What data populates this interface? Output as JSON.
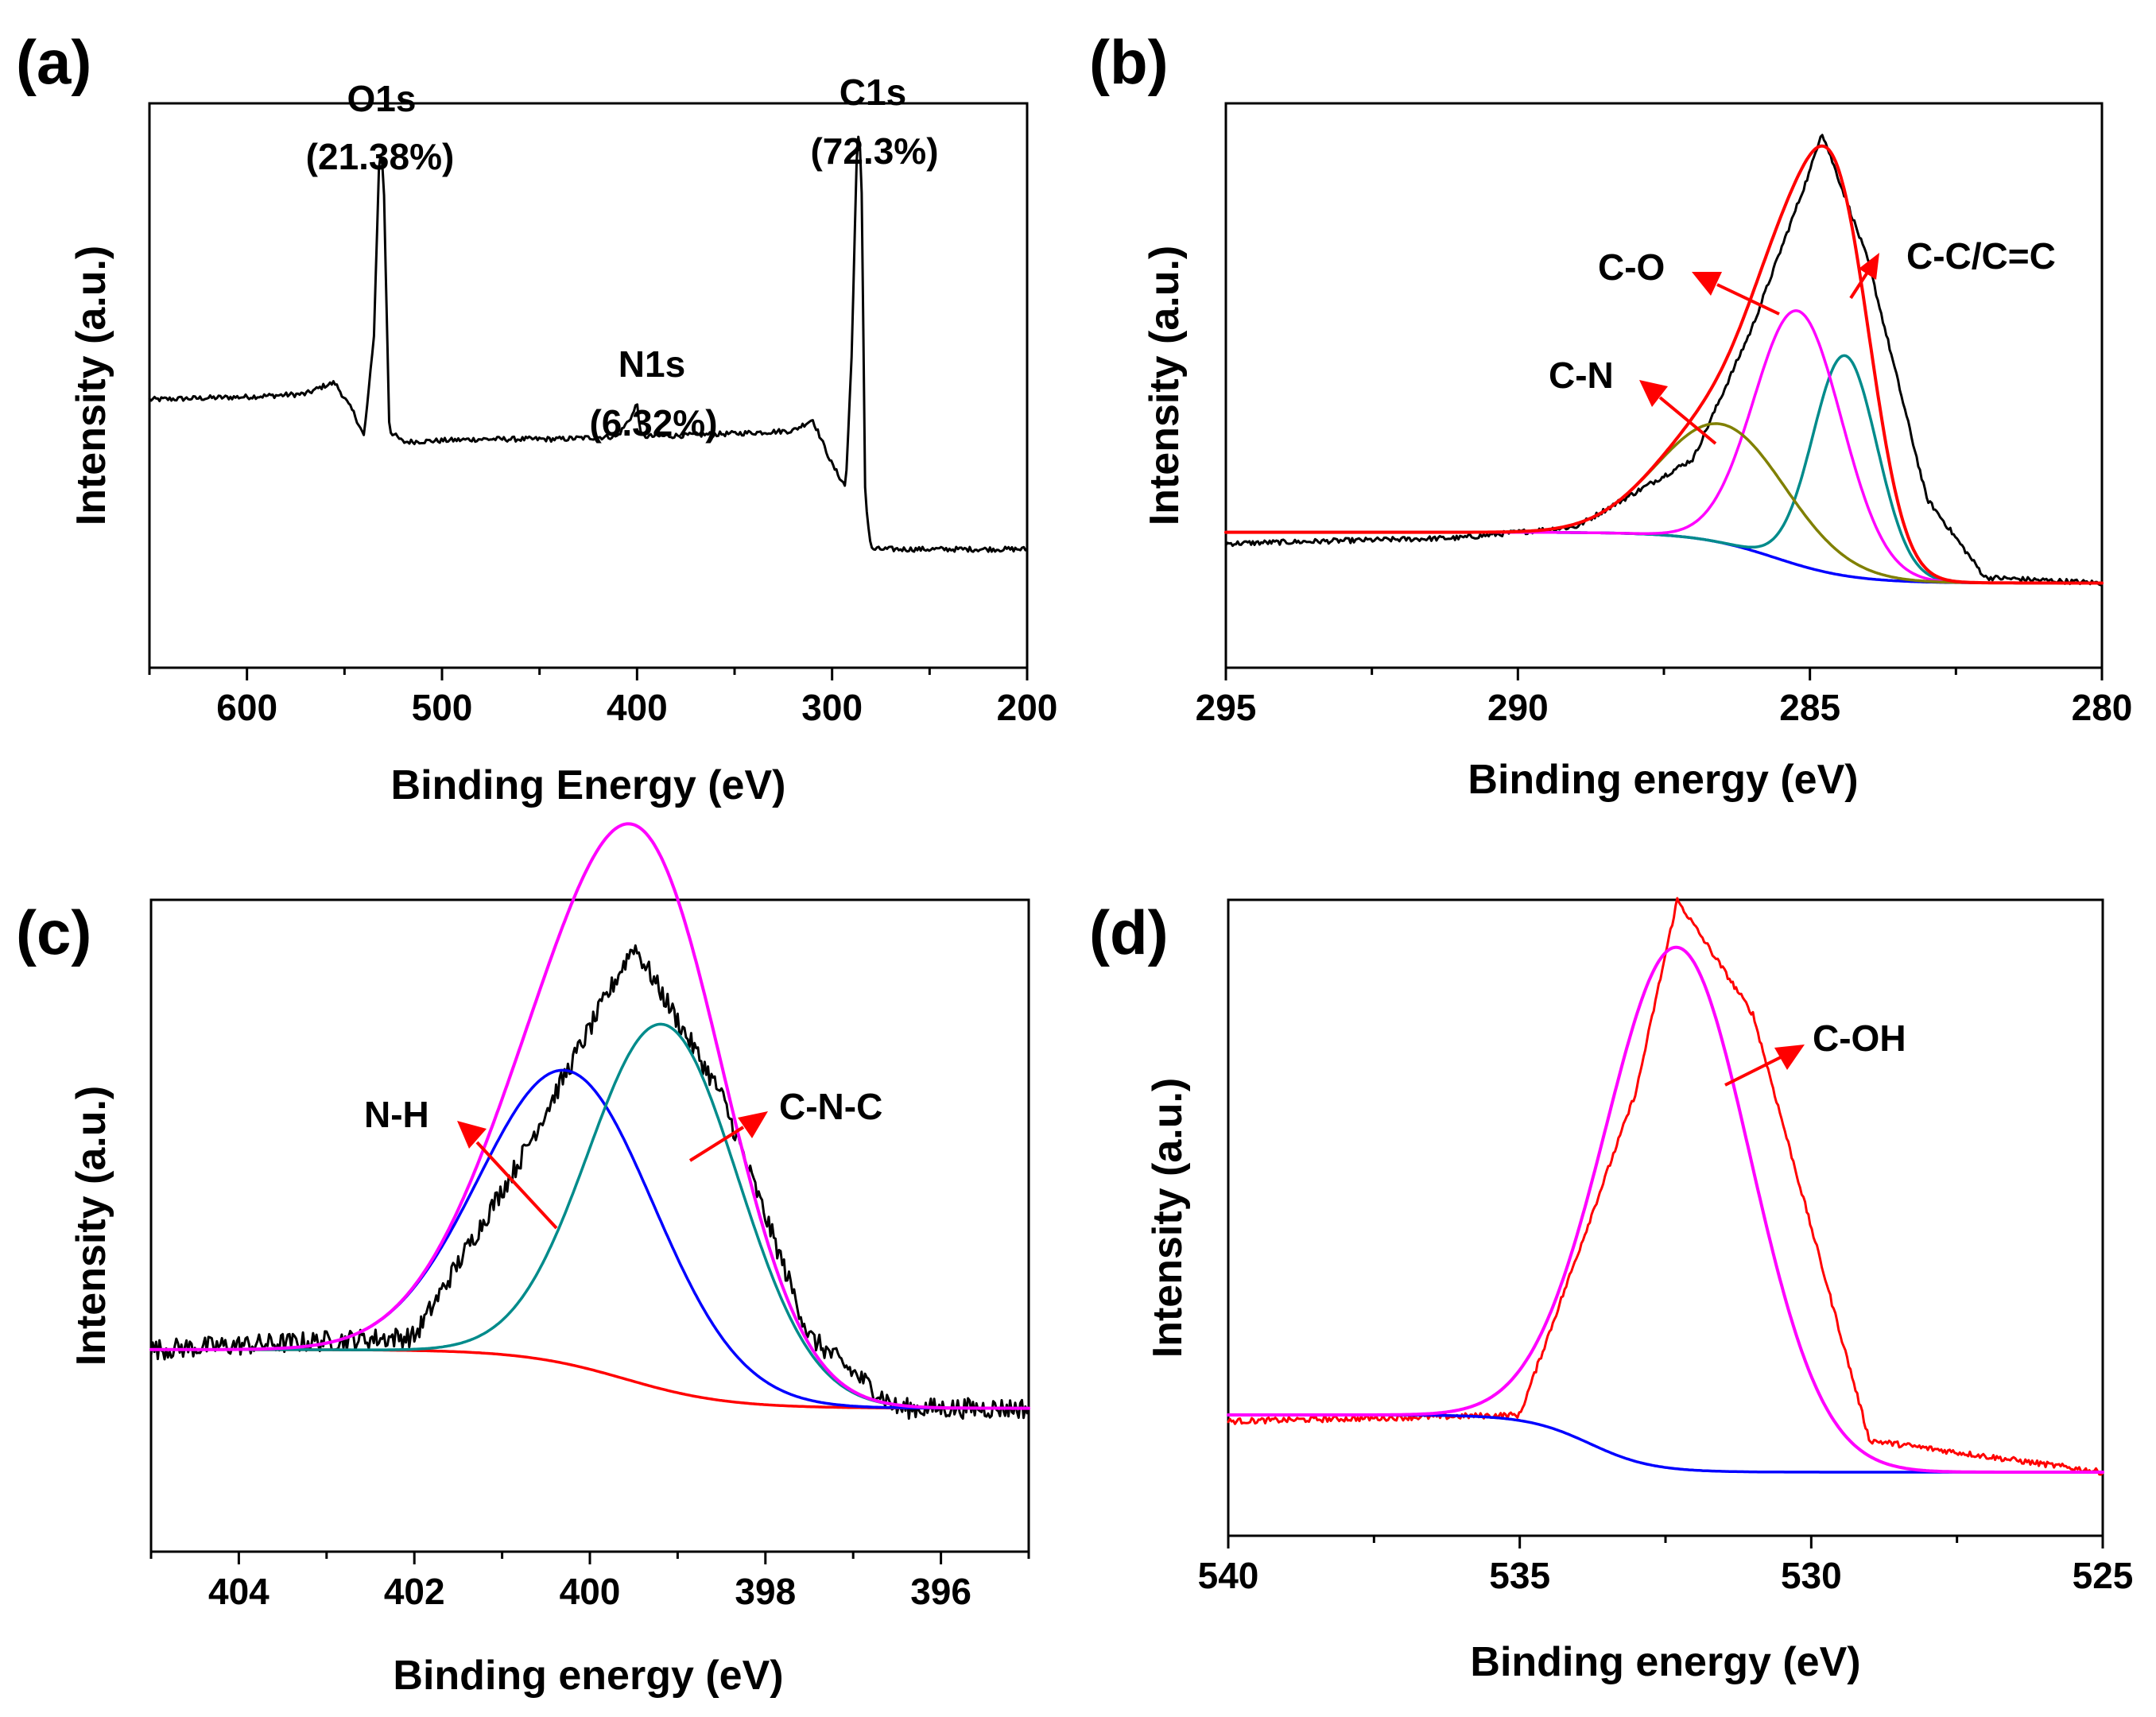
{
  "chart_data": [
    {
      "panel": "(a)",
      "type": "line",
      "xlabel": "Binding Energy (eV)",
      "ylabel": "Intensity (a.u.)",
      "xlim": [
        650,
        200
      ],
      "xticks": [
        600,
        500,
        400,
        300,
        200
      ],
      "ylim": [
        0,
        100
      ],
      "series": [
        {
          "name": "survey",
          "color": "#000000",
          "x": [
            650,
            600,
            570,
            560,
            555,
            545,
            540,
            535,
            532,
            530,
            527,
            520,
            480,
            440,
            410,
            402,
            400,
            398,
            390,
            350,
            320,
            310,
            300,
            293,
            290,
            287,
            285,
            283,
            280,
            260,
            200
          ],
          "y": [
            47.5,
            48,
            48.5,
            50,
            50.5,
            45,
            41,
            58,
            92,
            88,
            42,
            40,
            40.5,
            40.5,
            41,
            45,
            47,
            41,
            41,
            41.5,
            42,
            44,
            36,
            32,
            55,
            95,
            90,
            30,
            21,
            21,
            21
          ]
        }
      ],
      "annotations": [
        {
          "label": "O1s",
          "value": "(21.38%)"
        },
        {
          "label": "N1s",
          "value": "(6.32%)"
        },
        {
          "label": "C1s",
          "value": "(72.3%)"
        }
      ]
    },
    {
      "panel": "(b)",
      "type": "line",
      "xlabel": "Binding energy (eV)",
      "ylabel": "Intensity (a.u.)",
      "xlim": [
        295,
        280
      ],
      "xticks": [
        295,
        290,
        285,
        280
      ],
      "ylim": [
        0,
        100
      ],
      "peaks": [
        {
          "name": "C-C/C=C",
          "center": 284.4,
          "height": 39,
          "sigma": 0.55,
          "color": "#008b8b"
        },
        {
          "name": "C-O",
          "center": 285.2,
          "height": 45,
          "sigma": 0.75,
          "color": "#ff00ff"
        },
        {
          "name": "C-N",
          "center": 286.5,
          "height": 21,
          "sigma": 1.1,
          "color": "#808000"
        }
      ],
      "background": {
        "low": 15,
        "high": 24,
        "center": 285.6,
        "width": 1.5,
        "color": "#0000ff"
      },
      "envelope_color": "#ff0000",
      "raw_color": "#000000",
      "series": [
        {
          "name": "raw",
          "color": "#000000",
          "x": [
            295,
            291,
            289,
            287,
            286,
            285,
            284.8,
            284,
            283,
            282,
            280
          ],
          "y": [
            22,
            23,
            25,
            37,
            60,
            88,
            95,
            72,
            30,
            16,
            15
          ]
        }
      ],
      "annotations": [
        "C-C/C=C",
        "C-O",
        "C-N"
      ]
    },
    {
      "panel": "(c)",
      "type": "line",
      "xlabel": "Binding energy (eV)",
      "ylabel": "Intensity (a.u.)",
      "xlim": [
        405,
        395
      ],
      "xticks": [
        404,
        402,
        400,
        398,
        396
      ],
      "ylim": [
        0,
        100
      ],
      "peaks": [
        {
          "name": "N-H",
          "center": 400.25,
          "height": 45,
          "sigma": 1.0,
          "color": "#0000ff"
        },
        {
          "name": "C-N-C",
          "center": 399.15,
          "height": 56,
          "sigma": 0.85,
          "color": "#008b8b"
        }
      ],
      "background": {
        "low": 22,
        "high": 31,
        "center": 399.6,
        "width": 1.3,
        "color": "#ff0000"
      },
      "envelope_color": "#ff00ff",
      "raw_color": "#000000",
      "series": [
        {
          "name": "raw",
          "color": "#000000",
          "x": [
            405,
            402,
            400.8,
            399.5,
            398.5,
            397.5,
            396.5,
            395
          ],
          "y": [
            31,
            33,
            60,
            93,
            70,
            33,
            22,
            22
          ]
        }
      ],
      "annotations": [
        "N-H",
        "C-N-C"
      ]
    },
    {
      "panel": "(d)",
      "type": "line",
      "xlabel": "Binding energy (eV)",
      "ylabel": "Intensity (a.u.)",
      "xlim": [
        540,
        525
      ],
      "xticks": [
        540,
        535,
        530,
        525
      ],
      "ylim": [
        0,
        100
      ],
      "peaks": [
        {
          "name": "C-OH",
          "center": 532.3,
          "height": 82,
          "sigma": 1.25,
          "color": "#ff00ff"
        }
      ],
      "background": {
        "low": 10,
        "high": 19,
        "center": 533.8,
        "width": 1.2,
        "color": "#0000ff"
      },
      "envelope_color": "#ff00ff",
      "raw_color": "#ff0000",
      "series": [
        {
          "name": "raw",
          "color": "#ff0000",
          "x": [
            540,
            535,
            533,
            532.3,
            531,
            529,
            525
          ],
          "y": [
            18,
            19,
            70,
            100,
            82,
            15,
            10
          ]
        }
      ],
      "annotations": [
        "C-OH"
      ]
    }
  ]
}
